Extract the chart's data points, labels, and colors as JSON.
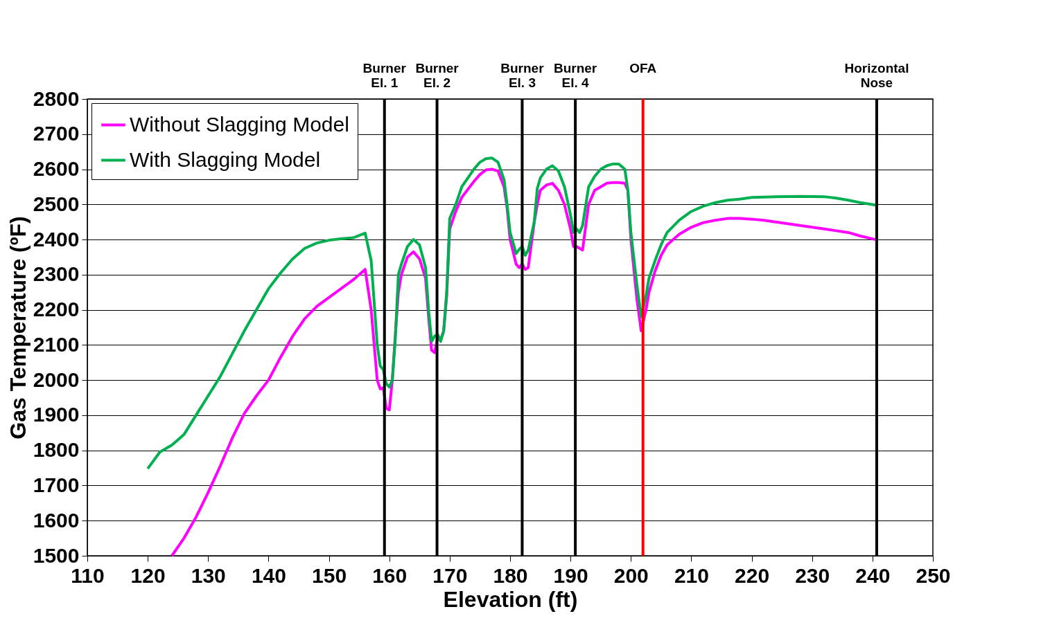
{
  "chart_data": {
    "type": "line",
    "xlabel": "Elevation (ft)",
    "ylabel": "Gas Temperature (ºF)",
    "xlim": [
      110,
      250
    ],
    "xticks": [
      110,
      120,
      130,
      140,
      150,
      160,
      170,
      180,
      190,
      200,
      210,
      220,
      230,
      240,
      250
    ],
    "ylim": [
      1500,
      2800
    ],
    "yticks": [
      1500,
      1600,
      1700,
      1800,
      1900,
      2000,
      2100,
      2200,
      2300,
      2400,
      2500,
      2600,
      2700,
      2800
    ],
    "grid": "y",
    "legend": "top left",
    "marker": "none",
    "line_style": "solid",
    "series": [
      {
        "name": "Without Slagging Model",
        "color": "#ff00ff",
        "x": [
          124,
          126,
          128,
          130,
          132,
          134,
          136,
          138,
          140,
          142,
          144,
          146,
          148,
          150,
          152,
          154,
          156,
          157,
          158,
          158.5,
          159,
          159.5,
          160,
          160.5,
          161,
          161.5,
          162,
          163,
          164,
          165,
          166,
          166.5,
          167,
          167.5,
          168,
          168.5,
          169,
          169.5,
          170,
          171,
          172,
          174,
          175,
          176,
          177,
          178,
          179,
          179.5,
          180,
          181,
          181.5,
          182,
          182.5,
          183,
          184,
          184.5,
          185,
          186,
          187,
          188,
          189,
          190,
          190.5,
          191,
          191.5,
          192,
          193,
          194,
          195,
          196,
          197,
          198,
          199,
          199.5,
          200,
          201,
          201.7,
          202.5,
          203,
          204,
          205,
          206,
          208,
          210,
          212,
          214,
          216,
          218,
          220,
          222,
          224,
          226,
          228,
          230,
          232,
          234,
          236,
          238,
          240.5
        ],
        "values": [
          1500,
          1550,
          1610,
          1680,
          1755,
          1835,
          1905,
          1955,
          2000,
          2065,
          2125,
          2175,
          2210,
          2235,
          2260,
          2285,
          2315,
          2200,
          2000,
          1975,
          1978,
          1920,
          1915,
          2000,
          2130,
          2250,
          2300,
          2350,
          2365,
          2345,
          2290,
          2180,
          2085,
          2078,
          2120,
          2115,
          2140,
          2240,
          2430,
          2480,
          2520,
          2565,
          2585,
          2598,
          2600,
          2595,
          2550,
          2490,
          2400,
          2330,
          2320,
          2330,
          2315,
          2320,
          2450,
          2500,
          2540,
          2555,
          2560,
          2540,
          2500,
          2430,
          2380,
          2380,
          2375,
          2370,
          2500,
          2540,
          2550,
          2560,
          2562,
          2562,
          2560,
          2540,
          2400,
          2230,
          2140,
          2200,
          2250,
          2310,
          2355,
          2385,
          2415,
          2435,
          2448,
          2455,
          2460,
          2460,
          2458,
          2455,
          2450,
          2445,
          2440,
          2435,
          2430,
          2425,
          2420,
          2410,
          2400
        ]
      },
      {
        "name": "With Slagging Model",
        "color": "#00b050",
        "x": [
          120,
          122,
          124,
          126,
          128,
          130,
          132,
          134,
          136,
          138,
          140,
          142,
          144,
          146,
          148,
          150,
          152,
          154,
          156,
          157,
          158,
          158.5,
          159,
          159.5,
          160,
          160.5,
          161,
          161.5,
          162,
          163,
          164,
          165,
          166,
          166.5,
          167,
          167.5,
          168,
          168.5,
          169,
          169.5,
          170,
          171,
          172,
          174,
          175,
          176,
          177,
          178,
          179,
          179.5,
          180,
          181,
          181.5,
          182,
          182.5,
          183,
          184,
          184.5,
          185,
          186,
          187,
          188,
          189,
          190,
          190.5,
          191,
          191.5,
          192,
          193,
          194,
          195,
          196,
          197,
          198,
          199,
          199.5,
          200,
          201,
          201.7,
          202.5,
          203,
          204,
          205,
          206,
          208,
          210,
          212,
          214,
          216,
          218,
          220,
          224,
          228,
          232,
          234,
          236,
          238,
          240.5
        ],
        "values": [
          1748,
          1795,
          1815,
          1845,
          1900,
          1955,
          2010,
          2075,
          2140,
          2200,
          2260,
          2305,
          2345,
          2375,
          2390,
          2398,
          2402,
          2405,
          2418,
          2340,
          2100,
          2040,
          2030,
          1990,
          1980,
          2000,
          2120,
          2300,
          2330,
          2380,
          2400,
          2385,
          2320,
          2200,
          2110,
          2125,
          2130,
          2110,
          2140,
          2250,
          2460,
          2500,
          2550,
          2600,
          2620,
          2630,
          2632,
          2620,
          2570,
          2500,
          2420,
          2360,
          2372,
          2380,
          2355,
          2370,
          2450,
          2545,
          2575,
          2600,
          2610,
          2595,
          2550,
          2470,
          2420,
          2430,
          2420,
          2440,
          2550,
          2580,
          2600,
          2610,
          2615,
          2615,
          2600,
          2540,
          2420,
          2270,
          2180,
          2240,
          2290,
          2340,
          2385,
          2420,
          2455,
          2480,
          2495,
          2505,
          2512,
          2515,
          2520,
          2522,
          2523,
          2522,
          2518,
          2512,
          2505,
          2498
        ]
      }
    ],
    "ref_lines": [
      {
        "axis": "x",
        "value": 159.2,
        "label": "Burner\nEl. 1",
        "color": "#000000"
      },
      {
        "axis": "x",
        "value": 167.9,
        "label": "Burner\nEl. 2",
        "color": "#000000"
      },
      {
        "axis": "x",
        "value": 182.0,
        "label": "Burner\nEl. 3",
        "color": "#000000"
      },
      {
        "axis": "x",
        "value": 190.8,
        "label": "Burner\nEl. 4",
        "color": "#000000"
      },
      {
        "axis": "x",
        "value": 202.0,
        "label": "OFA",
        "color": "#ff0000"
      },
      {
        "axis": "x",
        "value": 240.7,
        "label": "Horizontal\nNose",
        "color": "#000000"
      }
    ]
  }
}
